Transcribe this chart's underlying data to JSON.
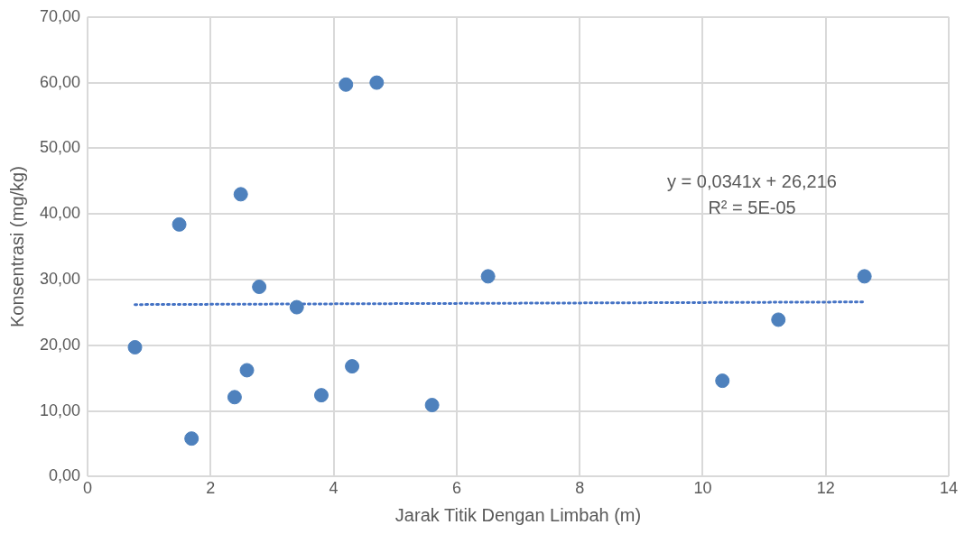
{
  "chart_data": {
    "type": "scatter",
    "xlabel": "Jarak Titik Dengan Limbah (m)",
    "ylabel": "Konsentrasi (mg/kg)",
    "xlim": [
      0,
      14
    ],
    "xticks": [
      0,
      2,
      4,
      6,
      8,
      10,
      12,
      14
    ],
    "ylim": [
      0,
      70
    ],
    "yticks": [
      {
        "value": 0,
        "label": "0,00"
      },
      {
        "value": 10,
        "label": "10,00"
      },
      {
        "value": 20,
        "label": "20,00"
      },
      {
        "value": 30,
        "label": "30,00"
      },
      {
        "value": 40,
        "label": "40,00"
      },
      {
        "value": 50,
        "label": "50,00"
      },
      {
        "value": 60,
        "label": "60,00"
      },
      {
        "value": 70,
        "label": "70,00"
      }
    ],
    "grid": true,
    "legend": false,
    "marker": "circle",
    "series": [
      {
        "color": "#4e81bd",
        "x": [
          0.77,
          1.49,
          1.69,
          2.39,
          2.49,
          2.59,
          2.79,
          3.4,
          3.8,
          4.2,
          4.3,
          4.7,
          5.6,
          6.51,
          10.32,
          11.23,
          12.63
        ],
        "values": [
          19.7,
          38.4,
          5.8,
          12.1,
          43.0,
          16.2,
          28.9,
          25.8,
          12.4,
          59.7,
          16.8,
          60.0,
          10.9,
          30.5,
          14.6,
          23.9,
          30.5
        ]
      },
      {
        "type": "line",
        "color": "#4472c4",
        "line_style": "dotted",
        "marker": "none",
        "x": [
          0.77,
          12.6
        ],
        "values": [
          26.2,
          26.6
        ]
      }
    ],
    "annotations": [
      "y = 0,0341x + 26,216",
      "R² = 5E-05"
    ]
  }
}
